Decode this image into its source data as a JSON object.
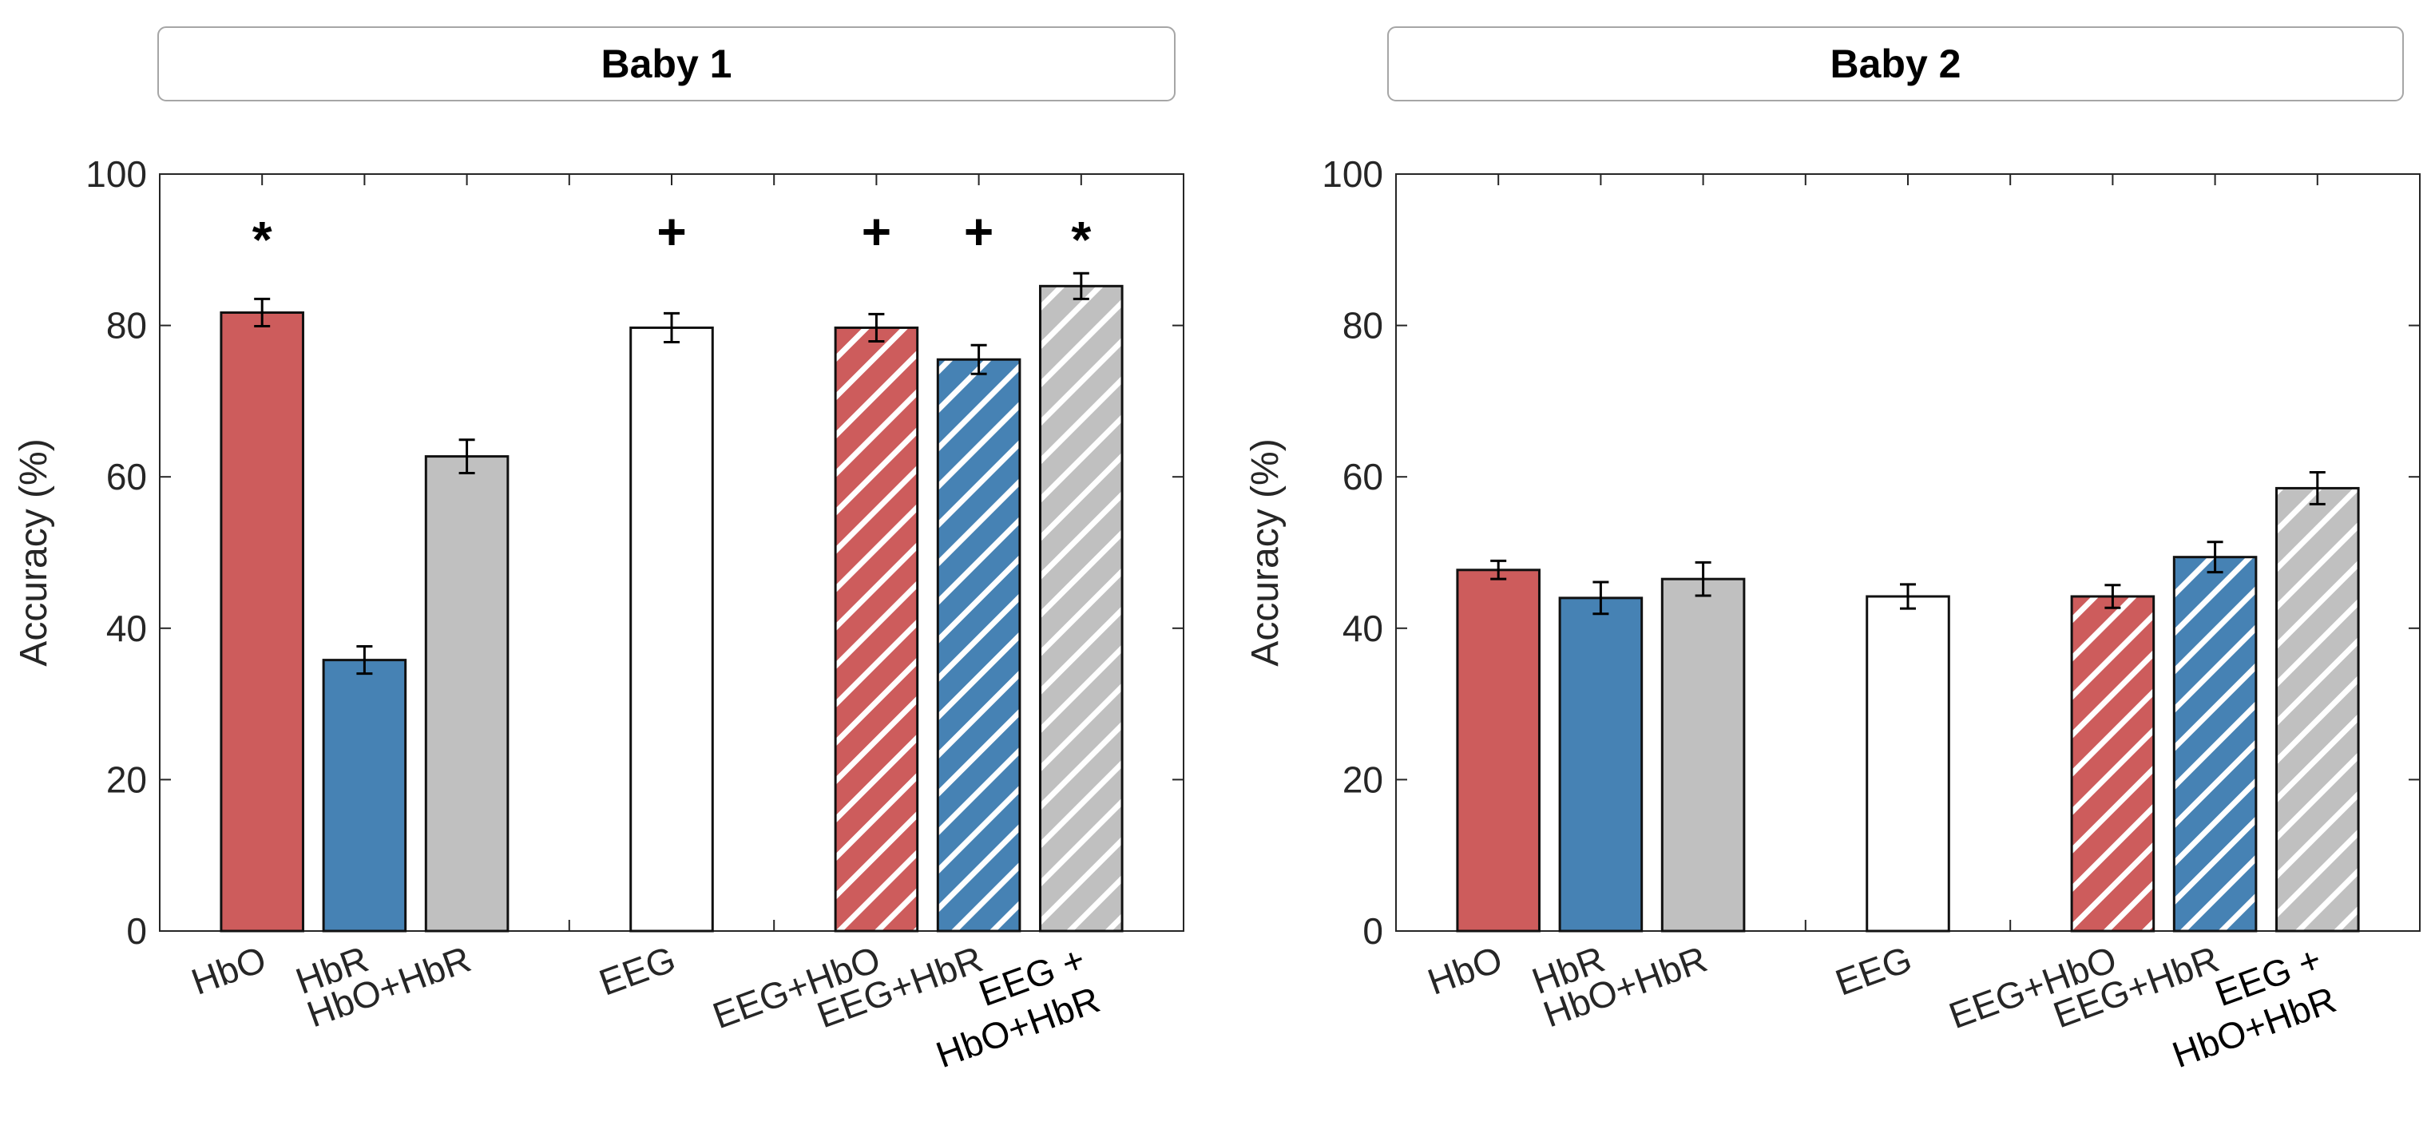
{
  "colors": {
    "hbo": "#cd5c5c",
    "hbr": "#4682b4",
    "combo": "#c0c0c0",
    "eeg": "#ffffff",
    "hatch": "#ffffff",
    "axis": "#262626"
  },
  "chart_data": [
    {
      "type": "bar",
      "title": "Baby 1",
      "xlabel": "",
      "ylabel": "Accuracy (%)",
      "ylim": [
        0,
        100
      ],
      "yticks": [
        0,
        20,
        40,
        60,
        80,
        100
      ],
      "ytick_labels": [
        "0",
        "20",
        "40",
        "60",
        "80",
        "100"
      ],
      "categories": [
        {
          "key": "hbo",
          "label": [
            "HbO"
          ],
          "fill": "hbo",
          "hatched": false
        },
        {
          "key": "hbr",
          "label": [
            "HbR"
          ],
          "fill": "hbr",
          "hatched": false
        },
        {
          "key": "hbo_hbr",
          "label": [
            "HbO+HbR"
          ],
          "fill": "combo",
          "hatched": false
        },
        {
          "key": "eeg",
          "label": [
            "EEG"
          ],
          "fill": "eeg",
          "hatched": false
        },
        {
          "key": "eeg_hbo",
          "label": [
            "EEG+HbO"
          ],
          "fill": "hbo",
          "hatched": true
        },
        {
          "key": "eeg_hbr",
          "label": [
            "EEG+HbR"
          ],
          "fill": "hbr",
          "hatched": true
        },
        {
          "key": "eeg_hbo_hbr",
          "label": [
            "EEG +",
            "HbO+HbR"
          ],
          "fill": "combo",
          "hatched": true
        }
      ],
      "values": [
        81.7,
        35.8,
        62.7,
        79.7,
        79.7,
        75.5,
        85.2
      ],
      "errors": [
        1.8,
        1.8,
        2.2,
        1.9,
        1.8,
        1.9,
        1.7
      ],
      "significance": [
        "*",
        "",
        "",
        "+",
        "+",
        "+",
        "*"
      ]
    },
    {
      "type": "bar",
      "title": "Baby 2",
      "xlabel": "",
      "ylabel": "Accuracy (%)",
      "ylim": [
        0,
        100
      ],
      "yticks": [
        0,
        20,
        40,
        60,
        80,
        100
      ],
      "ytick_labels": [
        "0",
        "20",
        "40",
        "60",
        "80",
        "100"
      ],
      "categories": [
        {
          "key": "hbo",
          "label": [
            "HbO"
          ],
          "fill": "hbo",
          "hatched": false
        },
        {
          "key": "hbr",
          "label": [
            "HbR"
          ],
          "fill": "hbr",
          "hatched": false
        },
        {
          "key": "hbo_hbr",
          "label": [
            "HbO+HbR"
          ],
          "fill": "combo",
          "hatched": false
        },
        {
          "key": "eeg",
          "label": [
            "EEG"
          ],
          "fill": "eeg",
          "hatched": false
        },
        {
          "key": "eeg_hbo",
          "label": [
            "EEG+HbO"
          ],
          "fill": "hbo",
          "hatched": true
        },
        {
          "key": "eeg_hbr",
          "label": [
            "EEG+HbR"
          ],
          "fill": "hbr",
          "hatched": true
        },
        {
          "key": "eeg_hbo_hbr",
          "label": [
            "EEG +",
            "HbO+HbR"
          ],
          "fill": "combo",
          "hatched": true
        }
      ],
      "values": [
        47.7,
        44.0,
        46.5,
        44.2,
        44.2,
        49.4,
        58.5
      ],
      "errors": [
        1.2,
        2.1,
        2.2,
        1.6,
        1.5,
        2.0,
        2.1
      ],
      "significance": [
        "",
        "",
        "",
        "",
        "",
        "",
        ""
      ]
    }
  ]
}
